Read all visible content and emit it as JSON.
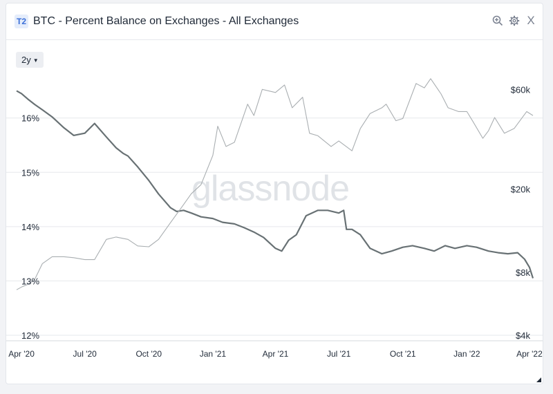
{
  "header": {
    "badge": "T2",
    "title": "BTC - Percent Balance on Exchanges - All Exchanges",
    "icons": [
      "zoom-in-icon",
      "gear-icon",
      "close-icon"
    ],
    "close_label": "X"
  },
  "range_selector": {
    "label": "2y"
  },
  "watermark": "glassnode",
  "colors": {
    "balance": "#687174",
    "price": "#a9aeb1",
    "grid": "#e6e8ec",
    "accent": "#3b6fd8"
  },
  "chart_data": {
    "type": "line",
    "title": "BTC - Percent Balance on Exchanges - All Exchanges",
    "x_ticks": [
      "Apr '20",
      "Jul '20",
      "Oct '20",
      "Jan '21",
      "Apr '21",
      "Jul '21",
      "Oct '21",
      "Jan '22",
      "Apr '22"
    ],
    "y_left": {
      "ticks": [
        "16%",
        "15%",
        "14%",
        "13%",
        "12%"
      ],
      "ylim": [
        12,
        16.9
      ]
    },
    "y_right": {
      "ticks": [
        "$60k",
        "$20k",
        "$8k",
        "$4k"
      ],
      "scale": "log",
      "ylim": [
        4000,
        75000
      ]
    },
    "grid": true,
    "legend": "none",
    "series": [
      {
        "axis": "left",
        "x": [
          "2020-03-25",
          "2020-04-01",
          "2020-04-10",
          "2020-04-20",
          "2020-05-01",
          "2020-05-15",
          "2020-06-01",
          "2020-06-15",
          "2020-07-01",
          "2020-07-15",
          "2020-08-01",
          "2020-08-15",
          "2020-08-25",
          "2020-09-01",
          "2020-09-15",
          "2020-10-01",
          "2020-10-15",
          "2020-11-01",
          "2020-11-10",
          "2020-11-20",
          "2020-12-01",
          "2020-12-15",
          "2021-01-01",
          "2021-01-15",
          "2021-02-01",
          "2021-02-15",
          "2021-03-01",
          "2021-03-15",
          "2021-04-01",
          "2021-04-10",
          "2021-04-20",
          "2021-05-01",
          "2021-05-15",
          "2021-06-01",
          "2021-06-15",
          "2021-07-01",
          "2021-07-08",
          "2021-07-12",
          "2021-07-20",
          "2021-08-01",
          "2021-08-15",
          "2021-09-01",
          "2021-09-15",
          "2021-10-01",
          "2021-10-15",
          "2021-11-01",
          "2021-11-15",
          "2021-12-01",
          "2021-12-15",
          "2022-01-01",
          "2022-01-15",
          "2022-02-01",
          "2022-02-15",
          "2022-03-01",
          "2022-03-15",
          "2022-03-25",
          "2022-04-01",
          "2022-04-06"
        ],
        "values": [
          16.5,
          16.45,
          16.35,
          16.25,
          16.15,
          16.02,
          15.82,
          15.68,
          15.72,
          15.9,
          15.65,
          15.45,
          15.35,
          15.3,
          15.1,
          14.85,
          14.6,
          14.35,
          14.28,
          14.3,
          14.25,
          14.18,
          14.15,
          14.08,
          14.05,
          13.98,
          13.9,
          13.8,
          13.6,
          13.55,
          13.75,
          13.85,
          14.2,
          14.3,
          14.3,
          14.25,
          14.3,
          13.95,
          13.95,
          13.85,
          13.6,
          13.5,
          13.55,
          13.62,
          13.65,
          13.6,
          13.55,
          13.65,
          13.6,
          13.65,
          13.62,
          13.55,
          13.52,
          13.5,
          13.52,
          13.4,
          13.25,
          13.05
        ]
      },
      {
        "axis": "right",
        "x": [
          "2020-03-25",
          "2020-04-01",
          "2020-04-10",
          "2020-04-20",
          "2020-05-01",
          "2020-05-15",
          "2020-06-01",
          "2020-06-15",
          "2020-07-01",
          "2020-07-15",
          "2020-08-01",
          "2020-08-15",
          "2020-09-01",
          "2020-09-15",
          "2020-10-01",
          "2020-10-15",
          "2020-11-01",
          "2020-11-15",
          "2020-12-01",
          "2020-12-15",
          "2021-01-01",
          "2021-01-08",
          "2021-01-20",
          "2021-02-01",
          "2021-02-20",
          "2021-03-01",
          "2021-03-13",
          "2021-04-01",
          "2021-04-14",
          "2021-04-25",
          "2021-05-10",
          "2021-05-20",
          "2021-06-01",
          "2021-06-20",
          "2021-07-01",
          "2021-07-20",
          "2021-08-01",
          "2021-08-15",
          "2021-09-01",
          "2021-09-07",
          "2021-09-21",
          "2021-10-01",
          "2021-10-20",
          "2021-11-01",
          "2021-11-10",
          "2021-11-25",
          "2021-12-05",
          "2021-12-20",
          "2022-01-01",
          "2022-01-10",
          "2022-01-24",
          "2022-02-01",
          "2022-02-10",
          "2022-02-24",
          "2022-03-10",
          "2022-03-28",
          "2022-04-06"
        ],
        "values": [
          6600,
          6800,
          7000,
          7400,
          8800,
          9500,
          9500,
          9400,
          9200,
          9200,
          11500,
          11800,
          11500,
          10700,
          10600,
          11500,
          13800,
          16000,
          19000,
          21000,
          29000,
          40000,
          32000,
          33500,
          51000,
          45000,
          60000,
          58000,
          63000,
          49000,
          55000,
          37000,
          36000,
          32000,
          34000,
          30500,
          39000,
          46000,
          49000,
          51000,
          42500,
          43500,
          64000,
          61000,
          67500,
          57000,
          49000,
          47000,
          47000,
          42000,
          35000,
          38000,
          44000,
          37000,
          39000,
          47000,
          45000
        ]
      }
    ]
  }
}
